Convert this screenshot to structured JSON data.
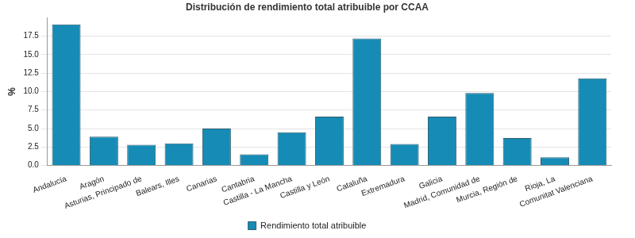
{
  "chart_data": {
    "type": "bar",
    "title": "Distribución de rendimiento total atribuible por CCAA",
    "y_label": "%",
    "categories": [
      "Andalucía",
      "Aragón",
      "Asturias, Principado de",
      "Balears, Illes",
      "Canarias",
      "Cantabria",
      "Castilla - La Mancha",
      "Castilla y León",
      "Cataluña",
      "Extremadura",
      "Galicia",
      "Madrid, Comunidad de",
      "Murcia, Región de",
      "Rioja, La",
      "Comunitat Valenciana"
    ],
    "series": [
      {
        "name": "Rendimiento total atribuible",
        "color": "#168bb5",
        "values": [
          19.1,
          3.9,
          2.8,
          3.0,
          5.0,
          1.5,
          4.5,
          6.6,
          17.2,
          2.9,
          6.6,
          9.8,
          3.7,
          1.1,
          11.8
        ]
      }
    ],
    "ylim": [
      0,
      20
    ],
    "yticks": [
      {
        "value": 0,
        "label": "0.0"
      },
      2.5,
      {
        "value": 5,
        "label": "5.0"
      },
      7.5,
      {
        "value": 10,
        "label": "10.0"
      },
      12.5,
      {
        "value": 15,
        "label": "15.0"
      },
      17.5
    ],
    "grid": true,
    "legend": "bottom"
  }
}
